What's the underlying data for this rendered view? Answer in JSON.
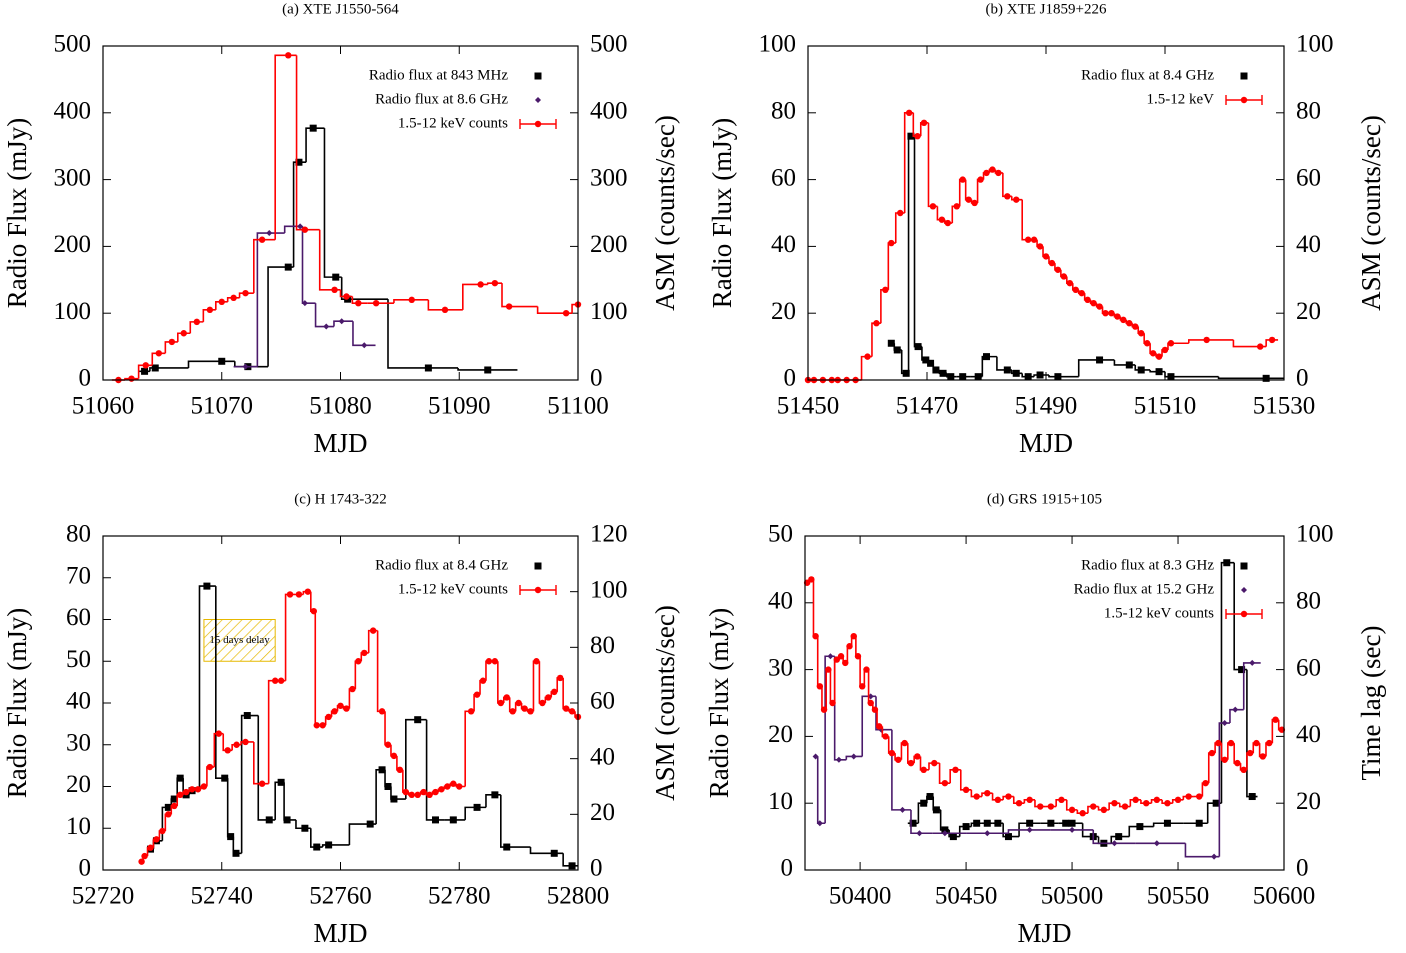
{
  "chart_data": [
    {
      "type": "line",
      "title": "(a) XTE J1550-564",
      "xlabel": "MJD",
      "ylabel": "Radio Flux (mJy)",
      "y2label": "ASM (counts/sec)",
      "xlim": [
        51060,
        51100
      ],
      "xticks": [
        51060,
        51070,
        51080,
        51090,
        51100
      ],
      "ylim": [
        0,
        500
      ],
      "yticks": [
        0,
        100,
        200,
        300,
        400,
        500
      ],
      "y2lim": [
        0,
        500
      ],
      "y2ticks": [
        0,
        100,
        200,
        300,
        400,
        500
      ],
      "legend": "top-right",
      "series": [
        {
          "name": "Radio flux at 843 MHz",
          "color": "#000000",
          "marker": "square",
          "x": [
            51063.5,
            51064.4,
            51070,
            51072.2,
            51075.6,
            51076.5,
            51077.7,
            51079.6,
            51080.6,
            51087.4,
            51092.4
          ],
          "values": [
            13,
            18,
            28,
            20,
            169,
            326,
            377,
            154,
            121,
            18,
            15
          ]
        },
        {
          "name": "Radio flux at 8.6 GHz",
          "color": "#4b1a6b",
          "marker": "diamond",
          "x": [
            51072,
            51074,
            51076.6,
            51077,
            51078.8,
            51080.1,
            51082
          ],
          "values": [
            20,
            220,
            230,
            115,
            80,
            88,
            52
          ]
        },
        {
          "name": "1.5-12 keV counts",
          "color": "#ff0000",
          "marker": "circle",
          "axis": "y2",
          "x": [
            51061.3,
            51062.4,
            51063.6,
            51064.7,
            51065.8,
            51066.8,
            51067.9,
            51069,
            51070,
            51071,
            51072,
            51073.4,
            51075.6,
            51077,
            51079.5,
            51080.5,
            51081.5,
            51083,
            51086,
            51088.8,
            51091.8,
            51093,
            51094.2,
            51099,
            51100
          ],
          "values": [
            0,
            2,
            22,
            40,
            57,
            70,
            87,
            105,
            117,
            123,
            130,
            210,
            486,
            225,
            135,
            125,
            115,
            115,
            120,
            105,
            143,
            145,
            110,
            100,
            113
          ]
        }
      ]
    },
    {
      "type": "line",
      "title": "(b) XTE J1859+226",
      "xlabel": "MJD",
      "ylabel": "Radio Flux (mJy)",
      "y2label": "ASM (counts/sec)",
      "xlim": [
        51450,
        51530
      ],
      "xticks": [
        51450,
        51470,
        51490,
        51510,
        51530
      ],
      "ylim": [
        0,
        100
      ],
      "yticks": [
        0,
        20,
        40,
        60,
        80,
        100
      ],
      "y2lim": [
        0,
        100
      ],
      "y2ticks": [
        0,
        20,
        40,
        60,
        80,
        100
      ],
      "legend": "top-right",
      "series": [
        {
          "name": "Radio flux at 8.4 GHz",
          "color": "#000000",
          "marker": "square",
          "x": [
            51464,
            51465,
            51466.5,
            51467.3,
            51468.5,
            51469.8,
            51470.6,
            51471.5,
            51472.7,
            51474,
            51476,
            51478.6,
            51480,
            51483.5,
            51485,
            51487,
            51489,
            51492,
            51499,
            51504,
            51506,
            51509,
            51511,
            51527
          ],
          "values": [
            11,
            9,
            2,
            73,
            10,
            6,
            5,
            3,
            2,
            1,
            1,
            1,
            7,
            3,
            2,
            1,
            1.5,
            1,
            6,
            4.5,
            3,
            2.5,
            1,
            0.5
          ]
        },
        {
          "name": "1.5-12 keV",
          "color": "#ff0000",
          "marker": "circle",
          "axis": "y2",
          "x": [
            51450,
            51451,
            51452.5,
            51454,
            51455,
            51456.5,
            51458,
            51460,
            51461.5,
            51463,
            51464,
            51465.5,
            51467,
            51468.4,
            51469.5,
            51471,
            51472.5,
            51473.5,
            51475,
            51476,
            51477,
            51478,
            51479,
            51480,
            51481,
            51482,
            51483.5,
            51485,
            51487,
            51488,
            51489,
            51490,
            51491,
            51492,
            51493,
            51494,
            51495,
            51496,
            51497,
            51498,
            51499,
            51500,
            51501,
            51502,
            51503,
            51504,
            51505,
            51506,
            51507,
            51508,
            51509,
            51510,
            51511,
            51517,
            51526,
            51528
          ],
          "values": [
            0,
            0,
            0,
            0,
            0,
            0,
            0,
            7,
            17,
            27,
            41,
            50,
            80,
            73,
            77,
            52,
            48,
            47,
            52,
            60,
            54,
            53,
            60,
            62,
            63,
            62,
            55,
            54,
            42,
            42,
            40,
            37,
            35,
            33,
            31,
            29,
            27,
            26,
            24,
            23,
            22,
            20,
            20,
            19,
            18,
            17,
            16,
            14,
            11,
            8,
            7,
            9,
            11,
            12,
            10,
            12
          ]
        }
      ]
    },
    {
      "type": "line",
      "title": "(c) H 1743-322",
      "xlabel": "MJD",
      "ylabel": "Radio Flux (mJy)",
      "y2label": "ASM (counts/sec)",
      "xlim": [
        52720,
        52800
      ],
      "xticks": [
        52720,
        52740,
        52760,
        52780,
        52800
      ],
      "ylim": [
        0,
        80
      ],
      "yticks": [
        0,
        10,
        20,
        30,
        40,
        50,
        60,
        70,
        80
      ],
      "y2lim": [
        0,
        120
      ],
      "y2ticks": [
        0,
        20,
        40,
        60,
        80,
        100,
        120
      ],
      "legend": "top-right",
      "annotations": [
        {
          "text": "15 days delay",
          "x": [
            52737,
            52749
          ],
          "y": [
            50,
            60
          ]
        }
      ],
      "series": [
        {
          "name": "Radio flux at 8.4 GHz",
          "color": "#000000",
          "marker": "square",
          "x": [
            52728,
            52729,
            52731,
            52732,
            52733,
            52734,
            52735,
            52737.5,
            52740.5,
            52741.5,
            52742.4,
            52744.3,
            52748,
            52750,
            52751,
            52754,
            52756,
            52758,
            52765,
            52767,
            52768,
            52769,
            52773,
            52776,
            52779,
            52783,
            52786,
            52788,
            52796,
            52799
          ],
          "values": [
            5,
            7,
            15,
            17,
            22,
            18,
            19,
            68,
            22,
            8,
            4,
            37,
            12,
            21,
            12,
            10,
            5.5,
            6,
            11,
            24,
            20,
            17,
            36,
            12,
            12,
            15,
            18,
            5.5,
            4,
            1
          ]
        },
        {
          "name": "1.5-12 keV counts",
          "color": "#ff0000",
          "marker": "circle",
          "axis": "y2",
          "x": [
            52726.5,
            52727,
            52728,
            52729,
            52730,
            52731,
            52732,
            52733,
            52734,
            52735,
            52736,
            52737,
            52738,
            52739.5,
            52741,
            52742.5,
            52744,
            52746.8,
            52749,
            52750,
            52751.5,
            52753,
            52754.5,
            52755.5,
            52756,
            52757,
            52758,
            52759,
            52760,
            52761,
            52762,
            52763,
            52764,
            52765.5,
            52767,
            52768,
            52769,
            52770,
            52771,
            52772,
            52773,
            52774,
            52775,
            52776,
            52777,
            52778,
            52779,
            52780,
            52782,
            52783,
            52784,
            52785,
            52786,
            52787,
            52788,
            52789,
            52790,
            52791,
            52792,
            52793,
            52794,
            52795,
            52796,
            52797,
            52798,
            52799,
            52800
          ],
          "values": [
            3,
            5,
            8,
            11,
            14,
            20,
            23,
            27,
            28,
            29,
            29,
            30,
            37,
            49,
            43,
            45,
            46,
            31,
            68,
            68,
            99,
            99,
            100,
            93,
            52,
            52,
            55,
            57,
            59,
            58,
            65,
            75,
            78,
            86,
            57,
            45,
            41,
            36,
            28,
            27,
            27,
            28,
            27,
            28,
            29,
            30,
            31,
            30,
            57,
            63,
            68,
            75,
            75,
            60,
            62,
            57,
            60,
            58,
            57,
            75,
            60,
            62,
            64,
            69,
            58,
            57,
            55
          ]
        }
      ]
    },
    {
      "type": "line",
      "title": "(d) GRS 1915+105",
      "xlabel": "MJD",
      "ylabel": "Radio Flux (mJy)",
      "y2label": "Time lag (sec)",
      "xlim": [
        50374,
        50600
      ],
      "xticks": [
        50400,
        50450,
        50500,
        50550,
        50600
      ],
      "ylim": [
        0,
        50
      ],
      "yticks": [
        0,
        10,
        20,
        30,
        40,
        50
      ],
      "y2lim": [
        0,
        100
      ],
      "y2ticks": [
        0,
        20,
        40,
        60,
        80,
        100
      ],
      "legend": "top-right",
      "series": [
        {
          "name": "Radio flux at 8.3 GHz",
          "color": "#000000",
          "marker": "square",
          "x": [
            50425,
            50430,
            50433,
            50436,
            50440,
            50444,
            50450,
            50455,
            50460,
            50465,
            50470,
            50480,
            50490,
            50497,
            50500,
            50510,
            50515,
            50522,
            50532,
            50545,
            50560,
            50568,
            50573,
            50580,
            50585
          ],
          "values": [
            7,
            10,
            11,
            9,
            6,
            5,
            6.5,
            7,
            7,
            7,
            5,
            7,
            7,
            7,
            7,
            5,
            4,
            5,
            6.5,
            7,
            7,
            10,
            46,
            30,
            11
          ]
        },
        {
          "name": "Radio flux at 15.2 GHz",
          "color": "#4b1a6b",
          "marker": "diamond",
          "x": [
            50379,
            50381,
            50386,
            50390,
            50397,
            50405,
            50410,
            50420,
            50428,
            50440,
            50460,
            50480,
            50500,
            50520,
            50540,
            50567,
            50572,
            50577,
            50585
          ],
          "values": [
            17,
            7,
            32,
            16.5,
            17,
            26,
            21,
            9,
            5.5,
            5.5,
            5.5,
            6,
            6,
            4,
            4,
            2,
            22,
            24,
            31
          ]
        },
        {
          "name": "1.5-12 keV counts",
          "color": "#ff0000",
          "marker": "circle",
          "axis": "y2",
          "x": [
            50375,
            50377,
            50379,
            50381,
            50383,
            50385,
            50387,
            50389,
            50391,
            50393,
            50395,
            50397,
            50399,
            50401,
            50403,
            50405,
            50407,
            50409,
            50412,
            50415,
            50418,
            50421,
            50424,
            50427,
            50430,
            50435,
            50440,
            50445,
            50450,
            50455,
            50460,
            50465,
            50470,
            50475,
            50480,
            50485,
            50490,
            50495,
            50500,
            50505,
            50510,
            50515,
            50520,
            50525,
            50530,
            50535,
            50540,
            50545,
            50550,
            50555,
            50560,
            50563,
            50566,
            50569,
            50572,
            50575,
            50578,
            50581,
            50584,
            50587,
            50590,
            50593,
            50596,
            50599
          ],
          "values": [
            86,
            87,
            70,
            55,
            48,
            60,
            50,
            63,
            64,
            62,
            67,
            70,
            64,
            55,
            60,
            50,
            48,
            43,
            40,
            35,
            33,
            38,
            32,
            34,
            30,
            32,
            26,
            30,
            24,
            22,
            23,
            21,
            22,
            20,
            21,
            19,
            19,
            21,
            18,
            17,
            19,
            18,
            20,
            19,
            21,
            20,
            21,
            20,
            21,
            22,
            22,
            26,
            35,
            38,
            33,
            38,
            32,
            30,
            35,
            38,
            34,
            38,
            45,
            42
          ]
        }
      ]
    }
  ]
}
